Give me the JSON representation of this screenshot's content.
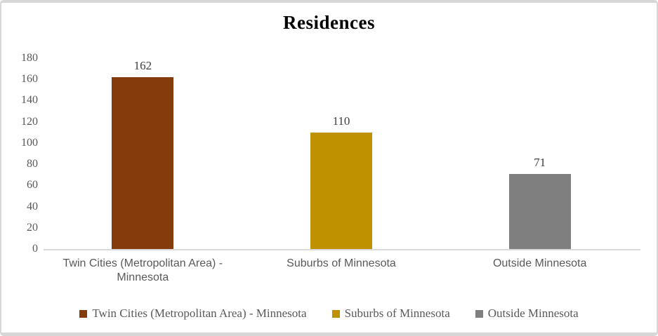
{
  "chart_data": {
    "type": "bar",
    "title": "Residences",
    "categories": [
      "Twin Cities (Metropolitan Area) - Minnesota",
      "Suburbs of Minnesota",
      "Outside Minnesota"
    ],
    "values": [
      162,
      110,
      71
    ],
    "data_labels": [
      "162",
      "110",
      "71"
    ],
    "bar_colors": [
      "#843C0C",
      "#BF9000",
      "#7F7F7F"
    ],
    "ylim": [
      0,
      180
    ],
    "yticks": [
      0,
      20,
      40,
      60,
      80,
      100,
      120,
      140,
      160,
      180
    ],
    "xlabel": "",
    "ylabel": "",
    "grid": false,
    "legend_position": "bottom",
    "legend_entries": [
      "Twin Cities (Metropolitan Area) - Minnesota",
      "Suburbs of Minnesota",
      "Outside Minnesota"
    ]
  },
  "colors": {
    "background": "#ffffff",
    "frame_border": "#d7d7d7",
    "axis_line": "#d9d9d9",
    "tick_label_text": "#595959",
    "category_label_text": "#595959",
    "legend_text": "#595959",
    "data_label_text": "#404040",
    "title_text": "#000000"
  }
}
